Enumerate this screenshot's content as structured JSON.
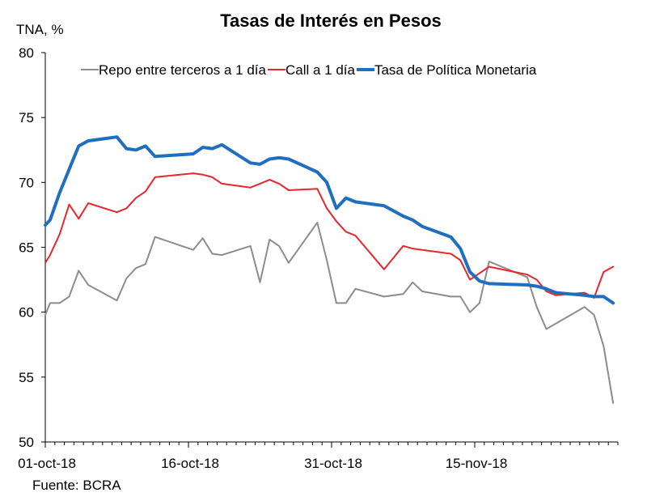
{
  "chart_data": {
    "type": "line",
    "title": "Tasas de Interés en Pesos",
    "ylabel": "TNA, %",
    "xlabel": "",
    "source": "Fuente: BCRA",
    "ylim": [
      50,
      80
    ],
    "yticks": [
      50,
      55,
      60,
      65,
      70,
      75,
      80
    ],
    "xticks": [
      {
        "label": "01-oct-18",
        "day": 0
      },
      {
        "label": "16-oct-18",
        "day": 15
      },
      {
        "label": "31-oct-18",
        "day": 30
      },
      {
        "label": "15-nov-18",
        "day": 45
      }
    ],
    "xlim": [
      0,
      60
    ],
    "legend_position": "top",
    "series": [
      {
        "name": "Repo entre terceros a 1 día",
        "color": "#8c8c8c",
        "width": 2,
        "points": [
          [
            0,
            59.8
          ],
          [
            0.5,
            60.7
          ],
          [
            1.5,
            60.7
          ],
          [
            2.5,
            61.2
          ],
          [
            3.5,
            63.2
          ],
          [
            4.5,
            62.1
          ],
          [
            7.5,
            60.9
          ],
          [
            8.5,
            62.6
          ],
          [
            9.5,
            63.4
          ],
          [
            10.5,
            63.7
          ],
          [
            11.5,
            65.8
          ],
          [
            15.5,
            64.8
          ],
          [
            16.5,
            65.7
          ],
          [
            17.5,
            64.5
          ],
          [
            18.5,
            64.4
          ],
          [
            21.5,
            65.1
          ],
          [
            22.5,
            62.3
          ],
          [
            23.5,
            65.6
          ],
          [
            24.5,
            65.1
          ],
          [
            25.5,
            63.8
          ],
          [
            28.5,
            66.9
          ],
          [
            29.5,
            64.0
          ],
          [
            30.5,
            60.7
          ],
          [
            31.5,
            60.7
          ],
          [
            32.5,
            61.8
          ],
          [
            35.5,
            61.2
          ],
          [
            37.5,
            61.4
          ],
          [
            38.5,
            62.3
          ],
          [
            39.5,
            61.6
          ],
          [
            42.5,
            61.2
          ],
          [
            43.5,
            61.2
          ],
          [
            44.5,
            60.0
          ],
          [
            45.5,
            60.7
          ],
          [
            46.5,
            63.9
          ],
          [
            50.5,
            62.7
          ],
          [
            51.5,
            60.4
          ],
          [
            52.5,
            58.7
          ],
          [
            56.5,
            60.4
          ],
          [
            57.5,
            59.8
          ],
          [
            58.5,
            57.4
          ],
          [
            59.5,
            53.0
          ]
        ]
      },
      {
        "name": "Call a 1 día",
        "color": "#e8262e",
        "width": 2,
        "points": [
          [
            0,
            63.8
          ],
          [
            0.5,
            64.4
          ],
          [
            1.5,
            66.0
          ],
          [
            2.5,
            68.3
          ],
          [
            3.5,
            67.2
          ],
          [
            4.5,
            68.4
          ],
          [
            7.5,
            67.7
          ],
          [
            8.5,
            68.0
          ],
          [
            9.5,
            68.8
          ],
          [
            10.5,
            69.3
          ],
          [
            11.5,
            70.4
          ],
          [
            15.5,
            70.7
          ],
          [
            16.5,
            70.6
          ],
          [
            17.5,
            70.4
          ],
          [
            18.5,
            69.9
          ],
          [
            21.5,
            69.6
          ],
          [
            22.5,
            69.9
          ],
          [
            23.5,
            70.2
          ],
          [
            24.5,
            69.9
          ],
          [
            25.5,
            69.4
          ],
          [
            28.5,
            69.5
          ],
          [
            29.5,
            68.0
          ],
          [
            30.5,
            67.0
          ],
          [
            31.5,
            66.2
          ],
          [
            32.5,
            65.9
          ],
          [
            35.5,
            63.3
          ],
          [
            37.5,
            65.1
          ],
          [
            38.5,
            64.9
          ],
          [
            39.5,
            64.8
          ],
          [
            42.5,
            64.5
          ],
          [
            43.5,
            64.0
          ],
          [
            44.5,
            62.5
          ],
          [
            45.5,
            63.0
          ],
          [
            46.5,
            63.5
          ],
          [
            50.5,
            62.9
          ],
          [
            51.5,
            62.5
          ],
          [
            52.5,
            61.6
          ],
          [
            53.5,
            61.3
          ],
          [
            56.5,
            61.5
          ],
          [
            57.5,
            61.1
          ],
          [
            58.5,
            63.1
          ],
          [
            59.5,
            63.5
          ]
        ]
      },
      {
        "name": "Tasa de Política Monetaria",
        "color": "#1f6fc0",
        "width": 4,
        "points": [
          [
            0,
            66.7
          ],
          [
            0.5,
            67.1
          ],
          [
            1.5,
            69.2
          ],
          [
            2.5,
            71.0
          ],
          [
            3.5,
            72.8
          ],
          [
            4.5,
            73.2
          ],
          [
            7.5,
            73.5
          ],
          [
            8.5,
            72.6
          ],
          [
            9.5,
            72.5
          ],
          [
            10.5,
            72.8
          ],
          [
            11.5,
            72.0
          ],
          [
            15.5,
            72.2
          ],
          [
            16.5,
            72.7
          ],
          [
            17.5,
            72.6
          ],
          [
            18.5,
            72.9
          ],
          [
            21.5,
            71.5
          ],
          [
            22.5,
            71.4
          ],
          [
            23.5,
            71.8
          ],
          [
            24.5,
            71.9
          ],
          [
            25.5,
            71.8
          ],
          [
            28.5,
            70.8
          ],
          [
            29.5,
            70.0
          ],
          [
            30.5,
            68.0
          ],
          [
            31.5,
            68.8
          ],
          [
            32.5,
            68.5
          ],
          [
            35.5,
            68.2
          ],
          [
            37.5,
            67.4
          ],
          [
            38.5,
            67.1
          ],
          [
            39.5,
            66.6
          ],
          [
            42.5,
            65.8
          ],
          [
            43.5,
            64.9
          ],
          [
            44.5,
            63.1
          ],
          [
            45.5,
            62.4
          ],
          [
            46.5,
            62.2
          ],
          [
            50.5,
            62.1
          ],
          [
            51.5,
            62.0
          ],
          [
            52.5,
            61.8
          ],
          [
            53.5,
            61.5
          ],
          [
            56.5,
            61.3
          ],
          [
            57.5,
            61.2
          ],
          [
            58.5,
            61.2
          ],
          [
            59.5,
            60.7
          ]
        ]
      }
    ]
  }
}
